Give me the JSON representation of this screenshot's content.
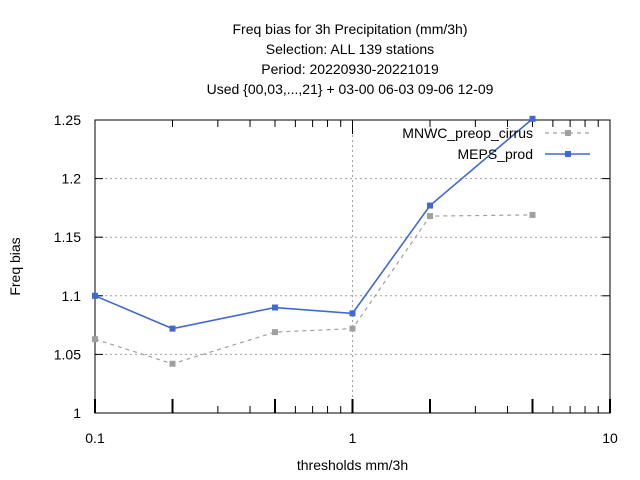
{
  "chart_data": {
    "type": "line",
    "title_lines": [
      "Freq bias  for 3h Precipitation (mm/3h)",
      "Selection: ALL     139 stations",
      "Period: 20220930-20221019",
      "Used {00,03,...,21} + 03-00 06-03 09-06 12-09"
    ],
    "xlabel": "thresholds mm/3h",
    "ylabel": "Freq bias",
    "xscale": "log",
    "xlim": [
      0.1,
      10
    ],
    "ylim": [
      1.0,
      1.25
    ],
    "x_ticks": [
      0.1,
      1,
      10
    ],
    "x_tick_labels": [
      "0.1",
      "1",
      "10"
    ],
    "y_ticks": [
      1.0,
      1.05,
      1.1,
      1.15,
      1.2,
      1.25
    ],
    "y_tick_labels": [
      "1",
      "1.05",
      "1.1",
      "1.15",
      "1.2",
      "1.25"
    ],
    "grid": true,
    "legend_position": "top-right",
    "x": [
      0.1,
      0.2,
      0.5,
      1.0,
      2.0,
      5.0
    ],
    "series": [
      {
        "name": "MNWC_preop_cirrus",
        "color": "#a0a0a0",
        "dashed": true,
        "values": [
          1.063,
          1.042,
          1.069,
          1.072,
          1.168,
          1.169
        ]
      },
      {
        "name": "MEPS_prod",
        "color": "#4169d6",
        "dashed": false,
        "values": [
          1.1,
          1.072,
          1.09,
          1.085,
          1.177,
          1.251
        ]
      }
    ]
  }
}
